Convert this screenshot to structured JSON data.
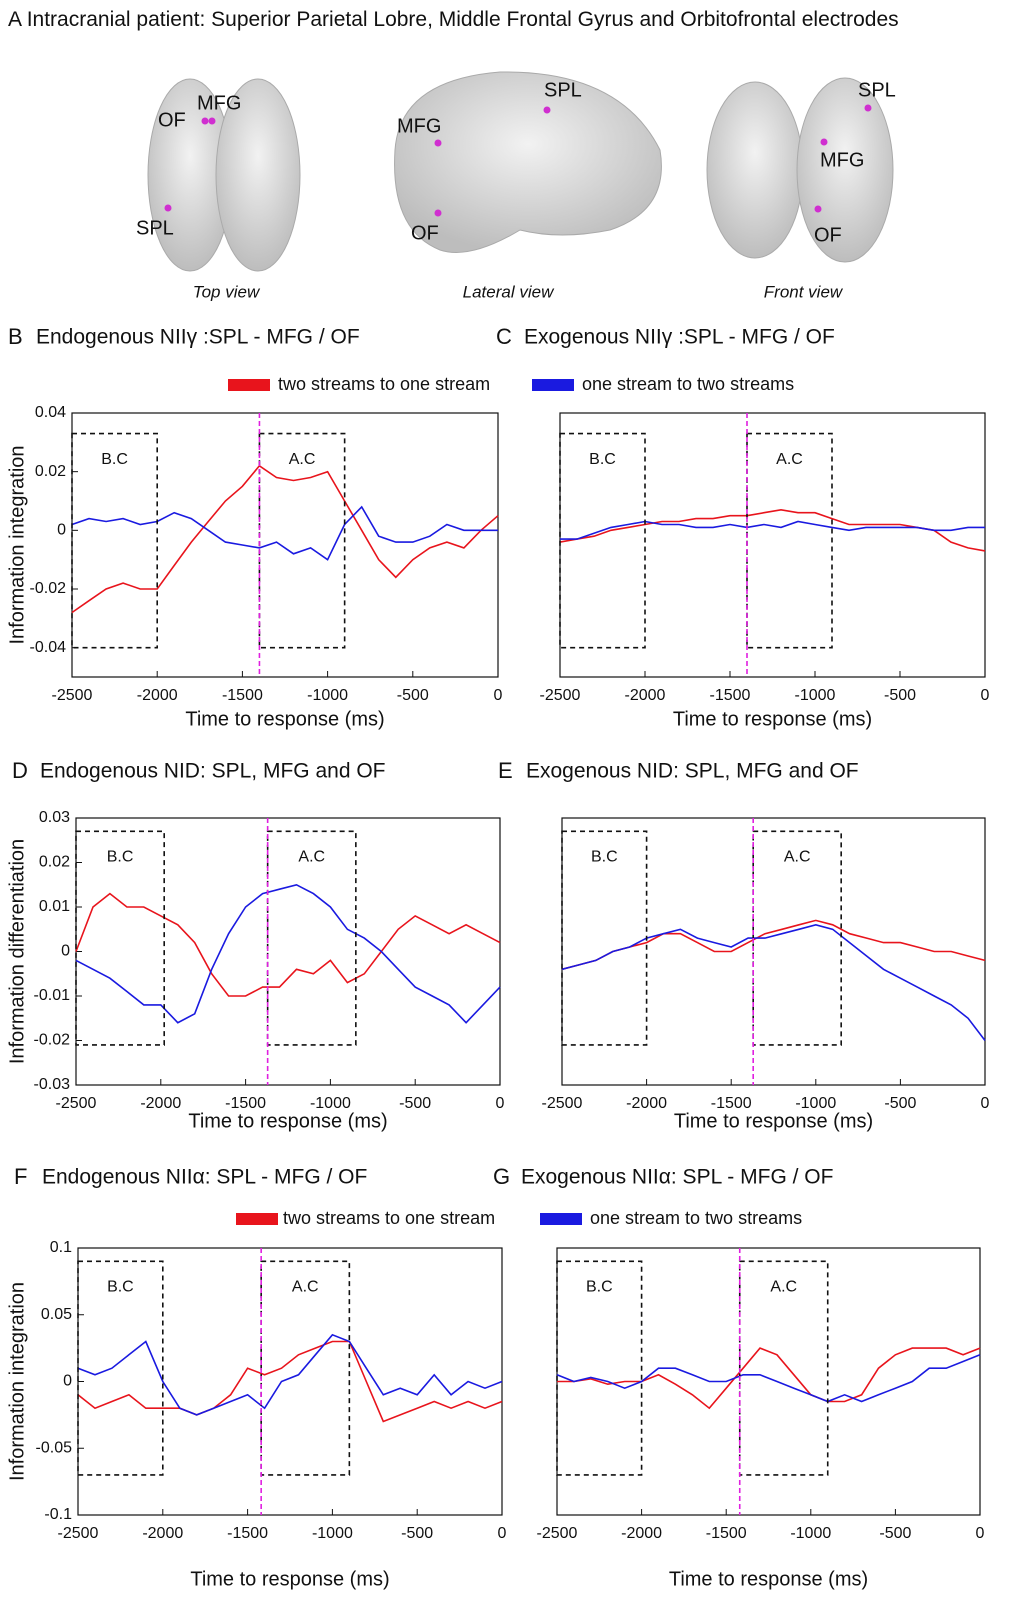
{
  "panel_a": {
    "letter": "A",
    "title": "Intracranial patient: Superior Parietal Lobre, Middle Frontal Gyrus and Orbitofrontal electrodes",
    "views": [
      {
        "caption": "Top view",
        "labels": [
          "OF",
          "MFG",
          "SPL"
        ]
      },
      {
        "caption": "Lateral view",
        "labels": [
          "MFG",
          "SPL",
          "OF"
        ]
      },
      {
        "caption": "Front view",
        "labels": [
          "SPL",
          "MFG",
          "OF"
        ]
      }
    ]
  },
  "chart_data": [
    {
      "type": "line",
      "letter": "B",
      "title": "Endogenous NIIγ :SPL - MFG / OF",
      "xlabel": "Time to response (ms)",
      "ylabel": "Information integration",
      "x": [
        -2500,
        -2400,
        -2300,
        -2200,
        -2100,
        -2000,
        -1900,
        -1800,
        -1700,
        -1600,
        -1500,
        -1400,
        -1300,
        -1200,
        -1100,
        -1000,
        -900,
        -800,
        -700,
        -600,
        -500,
        -400,
        -300,
        -200,
        -100,
        0
      ],
      "series": [
        {
          "name": "two streams to one stream",
          "color": "#e8141c",
          "values": [
            -0.028,
            -0.024,
            -0.02,
            -0.018,
            -0.02,
            -0.02,
            -0.012,
            -0.004,
            0.003,
            0.01,
            0.015,
            0.022,
            0.018,
            0.017,
            0.018,
            0.02,
            0.01,
            0,
            -0.01,
            -0.016,
            -0.01,
            -0.006,
            -0.004,
            -0.006,
            0,
            0.005
          ]
        },
        {
          "name": "one stream to two streams",
          "color": "#1a1ae0",
          "values": [
            0.002,
            0.004,
            0.003,
            0.004,
            0.002,
            0.003,
            0.006,
            0.004,
            0,
            -0.004,
            -0.005,
            -0.006,
            -0.004,
            -0.008,
            -0.006,
            -0.01,
            0.002,
            0.008,
            -0.002,
            -0.004,
            -0.004,
            -0.002,
            0.002,
            0,
            0,
            0
          ]
        }
      ],
      "windows": [
        {
          "label": "B.C",
          "x": [
            -2500,
            -2000
          ],
          "y": [
            -0.04,
            0.033
          ]
        },
        {
          "label": "A.C",
          "x": [
            -1400,
            -900
          ],
          "y": [
            -0.04,
            0.033
          ]
        }
      ],
      "marker_x": -1400,
      "xlim": [
        -2500,
        0
      ],
      "ylim": [
        -0.05,
        0.04
      ],
      "xticks": [
        -2500,
        -2000,
        -1500,
        -1000,
        -500,
        0
      ],
      "yticks": [
        -0.04,
        -0.02,
        0,
        0.02,
        0.04
      ]
    },
    {
      "type": "line",
      "letter": "C",
      "title": "Exogenous NIIγ :SPL - MFG / OF",
      "xlabel": "Time to response (ms)",
      "x": [
        -2500,
        -2400,
        -2300,
        -2200,
        -2100,
        -2000,
        -1900,
        -1800,
        -1700,
        -1600,
        -1500,
        -1400,
        -1300,
        -1200,
        -1100,
        -1000,
        -900,
        -800,
        -700,
        -600,
        -500,
        -400,
        -300,
        -200,
        -100,
        0
      ],
      "series": [
        {
          "color": "#e8141c",
          "values": [
            -0.004,
            -0.003,
            -0.002,
            0,
            0.001,
            0.002,
            0.003,
            0.003,
            0.004,
            0.004,
            0.005,
            0.005,
            0.006,
            0.007,
            0.006,
            0.006,
            0.004,
            0.002,
            0.002,
            0.002,
            0.002,
            0.001,
            0,
            -0.004,
            -0.006,
            -0.007
          ]
        },
        {
          "color": "#1a1ae0",
          "values": [
            -0.003,
            -0.003,
            -0.001,
            0.001,
            0.002,
            0.003,
            0.002,
            0.002,
            0.001,
            0.001,
            0.002,
            0.001,
            0.002,
            0.001,
            0.003,
            0.002,
            0.001,
            0,
            0.001,
            0.001,
            0.001,
            0.001,
            0,
            0,
            0.001,
            0.001
          ]
        }
      ],
      "windows": [
        {
          "label": "B.C",
          "x": [
            -2500,
            -2000
          ],
          "y": [
            -0.04,
            0.033
          ]
        },
        {
          "label": "A.C",
          "x": [
            -1400,
            -900
          ],
          "y": [
            -0.04,
            0.033
          ]
        }
      ],
      "marker_x": -1400,
      "xlim": [
        -2500,
        0
      ],
      "ylim": [
        -0.05,
        0.04
      ],
      "xticks": [
        -2500,
        -2000,
        -1500,
        -1000,
        -500,
        0
      ]
    },
    {
      "type": "line",
      "letter": "D",
      "title": "Endogenous NID: SPL, MFG and OF",
      "xlabel": "Time to response (ms)",
      "ylabel": "Information differentiation",
      "x": [
        -2500,
        -2400,
        -2300,
        -2200,
        -2100,
        -2000,
        -1900,
        -1800,
        -1700,
        -1600,
        -1500,
        -1400,
        -1300,
        -1200,
        -1100,
        -1000,
        -900,
        -800,
        -700,
        -600,
        -500,
        -400,
        -300,
        -200,
        -100,
        0
      ],
      "series": [
        {
          "color": "#e8141c",
          "values": [
            0,
            0.01,
            0.013,
            0.01,
            0.01,
            0.008,
            0.006,
            0.002,
            -0.005,
            -0.01,
            -0.01,
            -0.008,
            -0.008,
            -0.004,
            -0.005,
            -0.002,
            -0.007,
            -0.005,
            0,
            0.005,
            0.008,
            0.006,
            0.004,
            0.006,
            0.004,
            0.002
          ]
        },
        {
          "color": "#1a1ae0",
          "values": [
            -0.002,
            -0.004,
            -0.006,
            -0.009,
            -0.012,
            -0.012,
            -0.016,
            -0.014,
            -0.004,
            0.004,
            0.01,
            0.013,
            0.014,
            0.015,
            0.013,
            0.01,
            0.005,
            0.003,
            0,
            -0.004,
            -0.008,
            -0.01,
            -0.012,
            -0.016,
            -0.012,
            -0.008
          ]
        }
      ],
      "windows": [
        {
          "label": "B.C",
          "x": [
            -2500,
            -1980
          ],
          "y": [
            -0.021,
            0.027
          ]
        },
        {
          "label": "A.C",
          "x": [
            -1370,
            -850
          ],
          "y": [
            -0.021,
            0.027
          ]
        }
      ],
      "marker_x": -1370,
      "xlim": [
        -2500,
        0
      ],
      "ylim": [
        -0.03,
        0.03
      ],
      "xticks": [
        -2500,
        -2000,
        -1500,
        -1000,
        -500,
        0
      ],
      "yticks": [
        -0.03,
        -0.02,
        -0.01,
        0,
        0.01,
        0.02,
        0.03
      ]
    },
    {
      "type": "line",
      "letter": "E",
      "title": "Exogenous NID: SPL, MFG and OF",
      "xlabel": "Time to response (ms)",
      "x": [
        -2500,
        -2400,
        -2300,
        -2200,
        -2100,
        -2000,
        -1900,
        -1800,
        -1700,
        -1600,
        -1500,
        -1400,
        -1300,
        -1200,
        -1100,
        -1000,
        -900,
        -800,
        -700,
        -600,
        -500,
        -400,
        -300,
        -200,
        -100,
        0
      ],
      "series": [
        {
          "color": "#e8141c",
          "values": [
            -0.004,
            -0.003,
            -0.002,
            0,
            0.001,
            0.002,
            0.004,
            0.004,
            0.002,
            0,
            0,
            0.002,
            0.004,
            0.005,
            0.006,
            0.007,
            0.006,
            0.004,
            0.003,
            0.002,
            0.002,
            0.001,
            0,
            0,
            -0.001,
            -0.002
          ]
        },
        {
          "color": "#1a1ae0",
          "values": [
            -0.004,
            -0.003,
            -0.002,
            0,
            0.001,
            0.003,
            0.004,
            0.005,
            0.003,
            0.002,
            0.001,
            0.003,
            0.003,
            0.004,
            0.005,
            0.006,
            0.005,
            0.002,
            -0.001,
            -0.004,
            -0.006,
            -0.008,
            -0.01,
            -0.012,
            -0.015,
            -0.02
          ]
        }
      ],
      "windows": [
        {
          "label": "B.C",
          "x": [
            -2500,
            -2000
          ],
          "y": [
            -0.021,
            0.027
          ]
        },
        {
          "label": "A.C",
          "x": [
            -1370,
            -850
          ],
          "y": [
            -0.021,
            0.027
          ]
        }
      ],
      "marker_x": -1370,
      "xlim": [
        -2500,
        0
      ],
      "ylim": [
        -0.03,
        0.03
      ],
      "xticks": [
        -2500,
        -2000,
        -1500,
        -1000,
        -500,
        0
      ]
    },
    {
      "type": "line",
      "letter": "F",
      "title": "Endogenous NIIα: SPL - MFG / OF",
      "xlabel": "Time to response (ms)",
      "ylabel": "Information integration",
      "x": [
        -2500,
        -2400,
        -2300,
        -2200,
        -2100,
        -2000,
        -1900,
        -1800,
        -1700,
        -1600,
        -1500,
        -1400,
        -1300,
        -1200,
        -1100,
        -1000,
        -900,
        -800,
        -700,
        -600,
        -500,
        -400,
        -300,
        -200,
        -100,
        0
      ],
      "series": [
        {
          "name": "two streams to one stream",
          "color": "#e8141c",
          "values": [
            -0.01,
            -0.02,
            -0.015,
            -0.01,
            -0.02,
            -0.02,
            -0.02,
            -0.025,
            -0.02,
            -0.01,
            0.01,
            0.005,
            0.01,
            0.02,
            0.025,
            0.03,
            0.03,
            0,
            -0.03,
            -0.025,
            -0.02,
            -0.015,
            -0.02,
            -0.015,
            -0.02,
            -0.015
          ]
        },
        {
          "name": "one stream to two streams",
          "color": "#1a1ae0",
          "values": [
            0.01,
            0.005,
            0.01,
            0.02,
            0.03,
            0,
            -0.02,
            -0.025,
            -0.02,
            -0.015,
            -0.01,
            -0.02,
            0,
            0.005,
            0.02,
            0.035,
            0.03,
            0.01,
            -0.01,
            -0.005,
            -0.01,
            0.005,
            -0.01,
            0,
            -0.005,
            0
          ]
        }
      ],
      "windows": [
        {
          "label": "B.C",
          "x": [
            -2500,
            -2000
          ],
          "y": [
            -0.07,
            0.09
          ]
        },
        {
          "label": "A.C",
          "x": [
            -1420,
            -900
          ],
          "y": [
            -0.07,
            0.09
          ]
        }
      ],
      "marker_x": -1420,
      "xlim": [
        -2500,
        0
      ],
      "ylim": [
        -0.1,
        0.1
      ],
      "xticks": [
        -2500,
        -2000,
        -1500,
        -1000,
        -500,
        0
      ],
      "yticks": [
        -0.1,
        -0.05,
        0,
        0.05,
        0.1
      ]
    },
    {
      "type": "line",
      "letter": "G",
      "title": "Exogenous NIIα: SPL - MFG / OF",
      "xlabel": "Time to response (ms)",
      "x": [
        -2500,
        -2400,
        -2300,
        -2200,
        -2100,
        -2000,
        -1900,
        -1800,
        -1700,
        -1600,
        -1500,
        -1400,
        -1300,
        -1200,
        -1100,
        -1000,
        -900,
        -800,
        -700,
        -600,
        -500,
        -400,
        -300,
        -200,
        -100,
        0
      ],
      "series": [
        {
          "color": "#e8141c",
          "values": [
            0,
            0,
            0.002,
            -0.002,
            0,
            0,
            0.005,
            -0.002,
            -0.01,
            -0.02,
            -0.005,
            0.01,
            0.025,
            0.02,
            0.005,
            -0.01,
            -0.015,
            -0.015,
            -0.01,
            0.01,
            0.02,
            0.025,
            0.025,
            0.025,
            0.02,
            0.025
          ]
        },
        {
          "color": "#1a1ae0",
          "values": [
            0.005,
            0,
            0.003,
            0,
            -0.005,
            0,
            0.01,
            0.01,
            0.005,
            0,
            0,
            0.005,
            0.005,
            0,
            -0.005,
            -0.01,
            -0.015,
            -0.01,
            -0.015,
            -0.01,
            -0.005,
            0,
            0.01,
            0.01,
            0.015,
            0.02
          ]
        }
      ],
      "windows": [
        {
          "label": "B.C",
          "x": [
            -2500,
            -2000
          ],
          "y": [
            -0.07,
            0.09
          ]
        },
        {
          "label": "A.C",
          "x": [
            -1420,
            -900
          ],
          "y": [
            -0.07,
            0.09
          ]
        }
      ],
      "marker_x": -1420,
      "xlim": [
        -2500,
        0
      ],
      "ylim": [
        -0.1,
        0.1
      ],
      "xticks": [
        -2500,
        -2000,
        -1500,
        -1000,
        -500,
        0
      ]
    }
  ]
}
